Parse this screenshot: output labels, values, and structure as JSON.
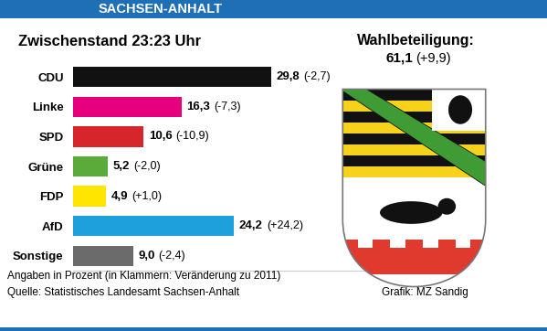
{
  "header": "SACHSEN-ANHALT",
  "chart_data": {
    "type": "bar",
    "orientation": "horizontal",
    "title": "Zwischenstand 23:23 Uhr",
    "categories": [
      "CDU",
      "Linke",
      "SPD",
      "Grüne",
      "FDP",
      "AfD",
      "Sonstige"
    ],
    "values": [
      29.8,
      16.3,
      10.6,
      5.2,
      4.9,
      24.2,
      9.0
    ],
    "value_labels": [
      "29,8",
      "16,3",
      "10,6",
      "5,2",
      "4,9",
      "24,2",
      "9,0"
    ],
    "change_labels": [
      "(-2,7)",
      "(-7,3)",
      "(-10,9)",
      "(-2,0)",
      "(+1,0)",
      "(+24,2)",
      "(-2,4)"
    ],
    "colors": [
      "#111111",
      "#e6007e",
      "#d7262b",
      "#5aab3a",
      "#ffe500",
      "#1ea0dc",
      "#6b6b6b"
    ],
    "xlim": [
      0,
      45
    ],
    "xticks": [],
    "data_labels": true,
    "tick_labels": "y",
    "grid": false
  },
  "turnout": {
    "title": "Wahlbeteiligung:",
    "value": "61,1",
    "change": "(+9,9)"
  },
  "footer": {
    "note": "Angaben in Prozent (in Klammern: Veränderung zu 2011)",
    "source": "Quelle: Statistisches Landesamt Sachsen-Anhalt",
    "credit": "Grafik: MZ Sandig"
  }
}
